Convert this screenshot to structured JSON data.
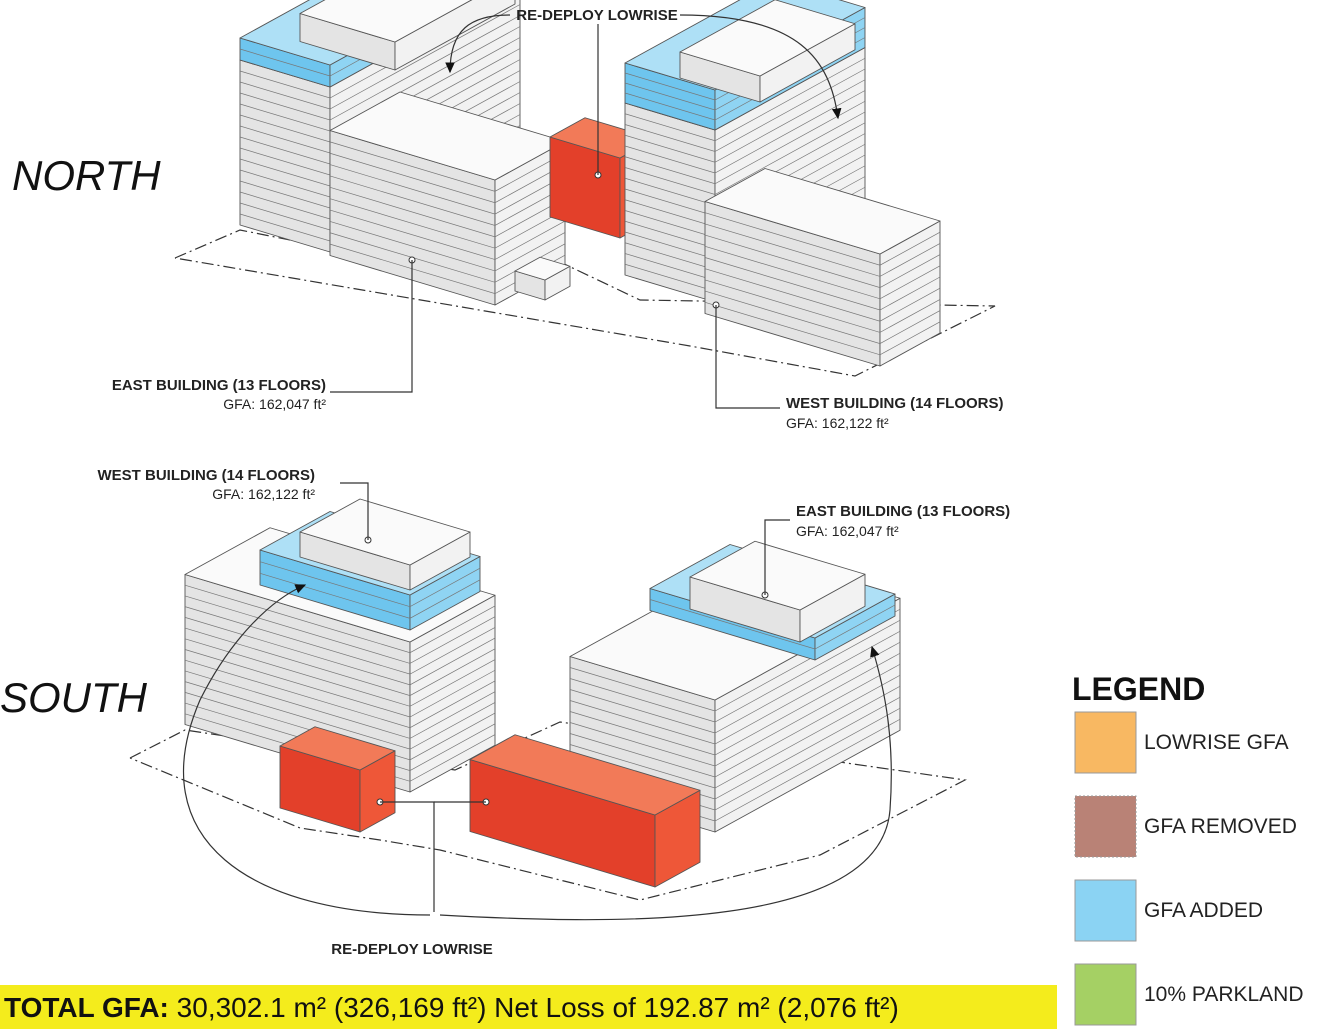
{
  "views": [
    {
      "label": "NORTH",
      "lowrise_callout": "RE-DEPLOY LOWRISE",
      "buildings": [
        {
          "name": "EAST BUILDING (13 FLOORS)",
          "gfa": "GFA: 162,047 ft²"
        },
        {
          "name": "WEST BUILDING (14 FLOORS)",
          "gfa": "GFA: 162,122 ft²"
        }
      ]
    },
    {
      "label": "SOUTH",
      "lowrise_callout": "RE-DEPLOY LOWRISE",
      "buildings": [
        {
          "name": "WEST BUILDING (14 FLOORS)",
          "gfa": "GFA: 162,122 ft²"
        },
        {
          "name": "EAST BUILDING (13 FLOORS)",
          "gfa": "GFA: 162,047 ft²"
        }
      ]
    }
  ],
  "legend": {
    "title": "LEGEND",
    "items": [
      {
        "label": "LOWRISE GFA",
        "color": "#f8b862"
      },
      {
        "label": "GFA REMOVED",
        "color": "#b98276"
      },
      {
        "label": "GFA ADDED",
        "color": "#8bd3f3"
      },
      {
        "label": "10% PARKLAND",
        "color": "#a5d064"
      }
    ]
  },
  "total": {
    "label": "TOTAL GFA:",
    "text": "30,302.1 m²  (326,169 ft²) Net Loss of  192.87 m² (2,076 ft²)"
  }
}
